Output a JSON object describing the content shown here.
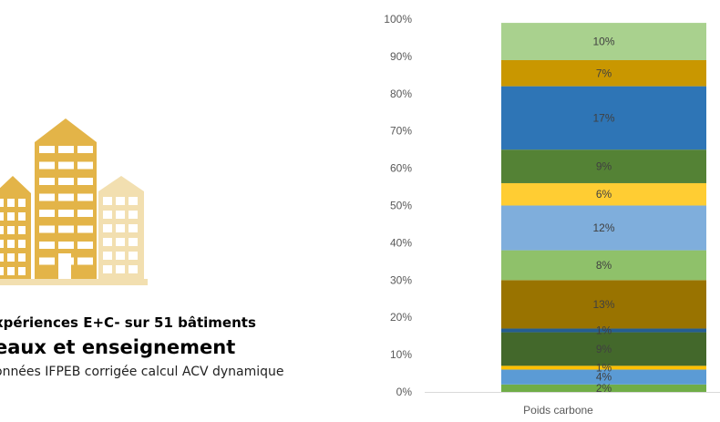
{
  "captions": {
    "line1": "xpériences E+C- sur 51 bâtiments",
    "line2": "eaux et enseignement",
    "line3": "onnées IFPEB corrigée calcul ACV dynamique"
  },
  "illustration": {
    "icon": "buildings-icon",
    "color_main": "#E3B448",
    "color_light": "#F2DFB0"
  },
  "chart_data": {
    "type": "bar",
    "stacked": true,
    "normalized_100": true,
    "categories": [
      "Poids carbone"
    ],
    "y_ticks": [
      "0%",
      "10%",
      "20%",
      "30%",
      "40%",
      "50%",
      "60%",
      "70%",
      "80%",
      "90%",
      "100%"
    ],
    "ylim": [
      0,
      100
    ],
    "grid": false,
    "legend": "none",
    "series": [
      {
        "values": [
          2
        ],
        "label": "2%",
        "color": "#70AD47"
      },
      {
        "values": [
          4
        ],
        "label": "4%",
        "color": "#5B9BD5"
      },
      {
        "values": [
          1
        ],
        "label": "1%",
        "color": "#FFC000"
      },
      {
        "values": [
          9
        ],
        "label": "9%",
        "color": "#43682B"
      },
      {
        "values": [
          1
        ],
        "label": "1%",
        "color": "#255E91"
      },
      {
        "values": [
          13
        ],
        "label": "13%",
        "color": "#997300"
      },
      {
        "values": [
          8
        ],
        "label": "8%",
        "color": "#8FC16A"
      },
      {
        "values": [
          12
        ],
        "label": "12%",
        "color": "#7FAEDC"
      },
      {
        "values": [
          6
        ],
        "label": "6%",
        "color": "#FFCD33"
      },
      {
        "values": [
          9
        ],
        "label": "9%",
        "color": "#548235"
      },
      {
        "values": [
          17
        ],
        "label": "17%",
        "color": "#2E75B6"
      },
      {
        "values": [
          7
        ],
        "label": "7%",
        "color": "#C99700"
      },
      {
        "values": [
          10
        ],
        "label": "10%",
        "color": "#A9D18E"
      }
    ]
  }
}
